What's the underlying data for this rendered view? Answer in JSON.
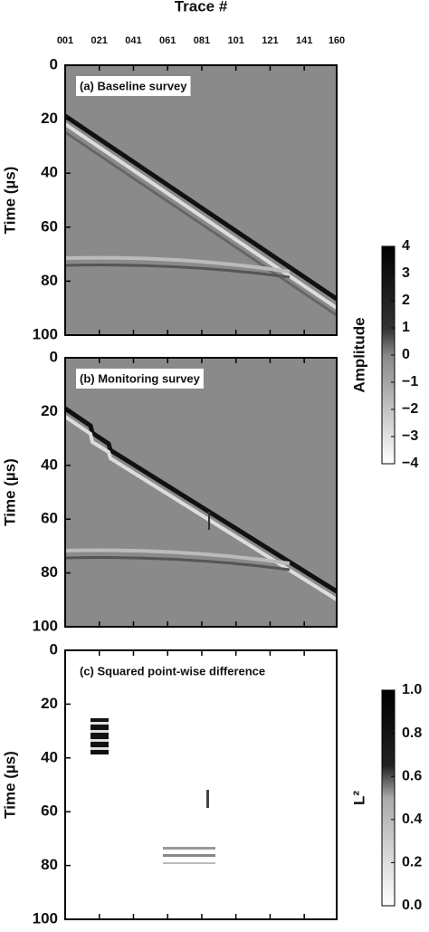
{
  "chart_data": [
    {
      "type": "heatmap",
      "title": "(a) Baseline survey",
      "xlabel": "Trace #",
      "ylabel": "Time (µs)",
      "xlim": [
        1,
        160
      ],
      "xticks": [
        {
          "value": 1,
          "label": "001"
        },
        {
          "value": 21,
          "label": "021"
        },
        {
          "value": 41,
          "label": "041"
        },
        {
          "value": 61,
          "label": "061"
        },
        {
          "value": 81,
          "label": "081"
        },
        {
          "value": 101,
          "label": "101"
        },
        {
          "value": 121,
          "label": "121"
        },
        {
          "value": 141,
          "label": "141"
        },
        {
          "value": 160,
          "label": "160"
        }
      ],
      "ylim": [
        100,
        0
      ],
      "yticks": [
        0,
        20,
        40,
        60,
        80,
        100
      ],
      "colorbar": {
        "label": "Amplitude",
        "lim": [
          -4,
          4
        ],
        "ticks": [
          4,
          3,
          2,
          1,
          0,
          {
            "value": -1,
            "label": "−1"
          },
          {
            "value": -2,
            "label": "−2"
          },
          {
            "value": -3,
            "label": "−3"
          },
          {
            "value": -4,
            "label": "−4"
          }
        ]
      }
    },
    {
      "type": "heatmap",
      "title": "(b) Monitoring survey",
      "ylabel": "Time (µs)",
      "xlim": [
        1,
        160
      ],
      "xticks": [
        1,
        21,
        41,
        61,
        81,
        101,
        121,
        141,
        160
      ],
      "ylim": [
        100,
        0
      ],
      "yticks": [
        0,
        20,
        40,
        60,
        80,
        100
      ]
    },
    {
      "type": "heatmap",
      "title": "(c) Squared point-wise difference",
      "ylabel": "Time (µs)",
      "xlim": [
        1,
        160
      ],
      "xticks": [
        1,
        21,
        41,
        61,
        81,
        101,
        121,
        141,
        160
      ],
      "ylim": [
        100,
        0
      ],
      "yticks": [
        0,
        20,
        40,
        60,
        80,
        100
      ],
      "colorbar": {
        "label": "L²",
        "lim": [
          0,
          1
        ],
        "ticks": [
          {
            "value": 1,
            "label": "1.0"
          },
          {
            "value": 0.8,
            "label": "0.8"
          },
          {
            "value": 0.6,
            "label": "0.6"
          },
          {
            "value": 0.4,
            "label": "0.4"
          },
          {
            "value": 0.2,
            "label": "0.2"
          },
          {
            "value": 0,
            "label": "0.0"
          }
        ]
      }
    }
  ]
}
